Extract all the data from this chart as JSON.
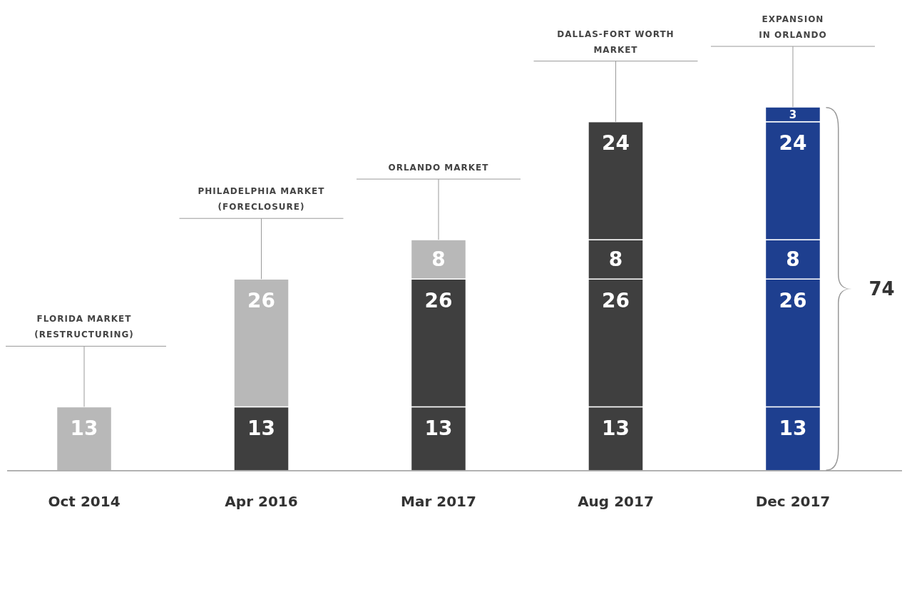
{
  "chart_data": {
    "type": "bar",
    "stacked": true,
    "categories": [
      "Oct 2014",
      "Apr 2016",
      "Mar 2017",
      "Aug 2017",
      "Dec 2017"
    ],
    "series": [
      {
        "values": [
          13,
          13,
          13,
          13,
          13
        ],
        "colors": [
          "#b8b8b8",
          "#3f3f3f",
          "#3f3f3f",
          "#3f3f3f",
          "#1e3f8f"
        ]
      },
      {
        "values": [
          null,
          26,
          26,
          26,
          26
        ],
        "colors": [
          null,
          "#b8b8b8",
          "#3f3f3f",
          "#3f3f3f",
          "#1e3f8f"
        ]
      },
      {
        "values": [
          null,
          null,
          8,
          8,
          8
        ],
        "colors": [
          null,
          null,
          "#b8b8b8",
          "#3f3f3f",
          "#1e3f8f"
        ]
      },
      {
        "values": [
          null,
          null,
          null,
          24,
          24
        ],
        "colors": [
          null,
          null,
          null,
          "#3f3f3f",
          "#1e3f8f"
        ]
      },
      {
        "values": [
          null,
          null,
          null,
          null,
          3
        ],
        "colors": [
          null,
          null,
          null,
          null,
          "#1e3f8f"
        ]
      }
    ],
    "data_labels": true,
    "totals": [
      null,
      null,
      null,
      null,
      "74"
    ],
    "annotations": [
      {
        "text": "FLORIDA MARKET\n(RESTRUCTURING)",
        "x": "Oct 2014",
        "y": 13
      },
      {
        "text": "PHILADELPHIA MARKET\n(FORECLOSURE)",
        "x": "Apr 2016",
        "y": 39
      },
      {
        "text": "ORLANDO MARKET",
        "x": "Mar 2017",
        "y": 47
      },
      {
        "text": "DALLAS-FORT WORTH\nMARKET",
        "x": "Aug 2017",
        "y": 71
      },
      {
        "text": "EXPANSION\nIN ORLANDO",
        "x": "Dec 2017",
        "y": 74
      }
    ]
  }
}
